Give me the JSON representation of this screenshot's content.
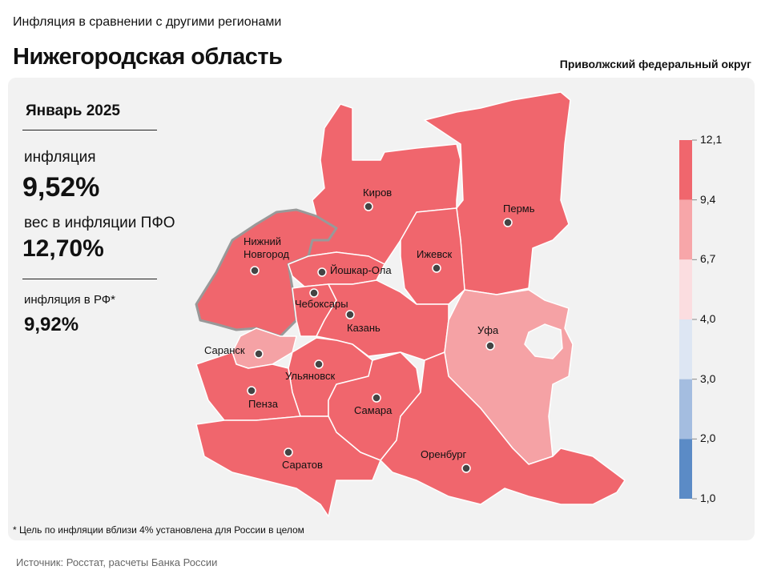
{
  "header": {
    "subtitle": "Инфляция в сравнении с другими регионами",
    "title": "Нижегородская область",
    "district": "Приволжский федеральный округ"
  },
  "panel": {
    "period": "Январь 2025",
    "inflation_label": "инфляция",
    "inflation_value": "9,52%",
    "weight_label": "вес в инфляции ПФО",
    "weight_value": "12,70%",
    "rf_label": "инфляция в РФ*",
    "rf_value": "9,92%"
  },
  "regions": [
    {
      "name": "Киров",
      "color": "#f0666d"
    },
    {
      "name": "Пермь",
      "color": "#f0666d"
    },
    {
      "name": "Нижний Новгород",
      "color": "#f0666d"
    },
    {
      "name": "Йошкар-Ола",
      "color": "#f0666d"
    },
    {
      "name": "Ижевск",
      "color": "#f0666d"
    },
    {
      "name": "Чебоксары",
      "color": "#f0666d"
    },
    {
      "name": "Казань",
      "color": "#f0666d"
    },
    {
      "name": "Уфа",
      "color": "#f5a2a5"
    },
    {
      "name": "Саранск",
      "color": "#f5a2a5"
    },
    {
      "name": "Ульяновск",
      "color": "#f0666d"
    },
    {
      "name": "Пенза",
      "color": "#f0666d"
    },
    {
      "name": "Самара",
      "color": "#f0666d"
    },
    {
      "name": "Саратов",
      "color": "#f0666d"
    },
    {
      "name": "Оренбург",
      "color": "#f0666d"
    }
  ],
  "legend": {
    "ticks": [
      "12,1",
      "9,4",
      "6,7",
      "4,0",
      "3,0",
      "2,0",
      "1,0"
    ],
    "colors": [
      "#f0666d",
      "#f7a6a9",
      "#fbdde0",
      "#dde6f3",
      "#a4bde0",
      "#5b8bc6"
    ]
  },
  "footnote": "* Цель по инфляции вблизи 4% установлена для России в целом",
  "source": "Источник: Росстат, расчеты Банка России"
}
